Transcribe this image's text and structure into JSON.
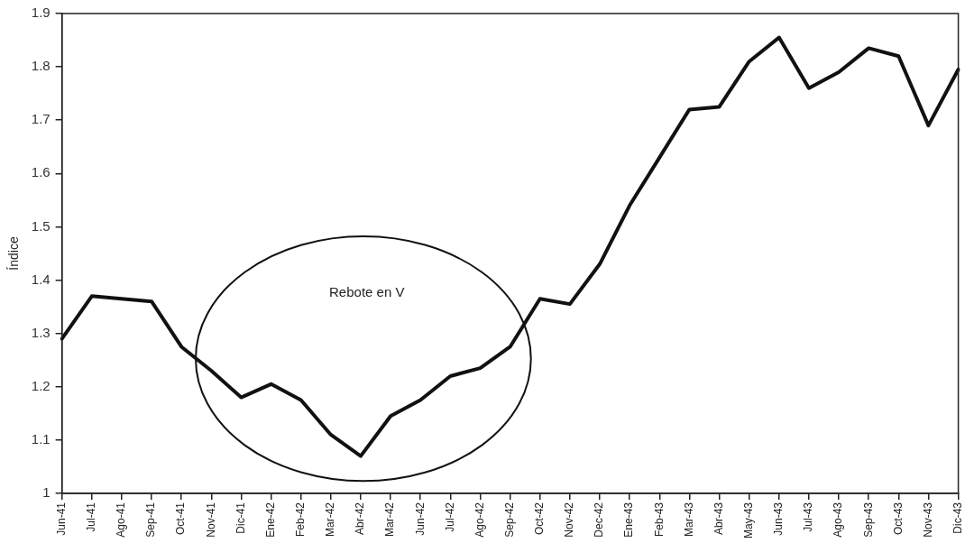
{
  "chart_data": {
    "type": "line",
    "ylabel": "Índice",
    "categories": [
      "Jun-41",
      "Jul-41",
      "Ago-41",
      "Sep-41",
      "Oct-41",
      "Nov-41",
      "Dic-41",
      "Ene-42",
      "Feb-42",
      "Mar-42",
      "Abr-42",
      "Mar-42",
      "Jun-42",
      "Jul-42",
      "Ago-42",
      "Sep-42",
      "Oct-42",
      "Nov-42",
      "Dec-42",
      "Ene-43",
      "Feb-43",
      "Mar-43",
      "Abr-43",
      "May-43",
      "Jun-43",
      "Jul-43",
      "Ago-43",
      "Sep-43",
      "Oct-43",
      "Nov-43",
      "Dic-43"
    ],
    "series": [
      {
        "color": "#111111",
        "values": [
          1.29,
          1.37,
          1.365,
          1.36,
          1.275,
          1.23,
          1.18,
          1.205,
          1.175,
          1.11,
          1.07,
          1.145,
          1.175,
          1.22,
          1.235,
          1.275,
          1.365,
          1.355,
          1.43,
          1.54,
          1.63,
          1.72,
          1.725,
          1.81,
          1.855,
          1.76,
          1.79,
          1.835,
          1.82,
          1.69,
          1.795
        ]
      }
    ],
    "ylim": [
      1,
      1.9
    ],
    "yticks": [
      1,
      1.1,
      1.2,
      1.3,
      1.4,
      1.5,
      1.6,
      1.7,
      1.8,
      1.9
    ],
    "annotations": [
      "Rebote en V"
    ],
    "grid": false,
    "legend": false,
    "marker": "none",
    "line_style": "solid"
  }
}
